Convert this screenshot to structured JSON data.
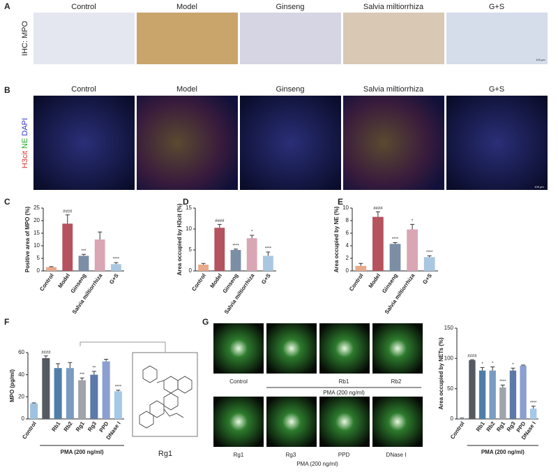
{
  "panel_labels": [
    "A",
    "B",
    "C",
    "D",
    "E",
    "F",
    "G"
  ],
  "row_a": {
    "ylabel": "IHC: MPO",
    "columns": [
      "Control",
      "Model",
      "Ginseng",
      "Salvia miltiorrhiza",
      "G+S"
    ],
    "scale": "100 μm"
  },
  "row_b": {
    "ylabel_parts": [
      "H3cit",
      "NE",
      "DAPI"
    ],
    "columns": [
      "Control",
      "Model",
      "Ginseng",
      "Salvia miltiorrhiza",
      "G+S"
    ],
    "scale": "100 μm"
  },
  "structure": {
    "label": "Rg1"
  },
  "panel_g_images": {
    "top": [
      "Control",
      "Rb1",
      "Rb2"
    ],
    "top_group": "PMA (200 ng/ml)",
    "bottom": [
      "Rg1",
      "Rg3",
      "PPD",
      "DNase I"
    ],
    "bottom_group": "PMA (200 ng/ml)"
  },
  "chart_data": [
    {
      "type": "bar",
      "ylabel": "Positive area of MPO (%)",
      "categories": [
        "Control",
        "Model",
        "Ginseng",
        "Salvia miltiorrhiza",
        "G+S"
      ],
      "values": [
        1.5,
        18.8,
        6,
        12.5,
        2.7
      ],
      "errors": [
        0.2,
        3.5,
        0.6,
        3,
        0.6
      ],
      "annotations": [
        null,
        "####",
        "***",
        null,
        "****"
      ],
      "colors": [
        "#e9a98a",
        "#b5535e",
        "#7b8ea6",
        "#d9a6b4",
        "#a9c7e0"
      ],
      "ylim": [
        0,
        25
      ],
      "yticks": [
        0,
        5,
        10,
        15,
        20,
        25
      ]
    },
    {
      "type": "bar",
      "ylabel": "Area occupied by H3cit (%)",
      "categories": [
        "Control",
        "Model",
        "Ginseng",
        "Salvia miltiorrhiza",
        "G+S"
      ],
      "values": [
        1.5,
        10.3,
        5,
        7.8,
        3.6
      ],
      "errors": [
        0.3,
        0.8,
        0.2,
        0.7,
        0.9
      ],
      "annotations": [
        null,
        "####",
        "****",
        "*",
        "****"
      ],
      "colors": [
        "#e9a98a",
        "#b5535e",
        "#7b8ea6",
        "#d9a6b4",
        "#a9c7e0"
      ],
      "ylim": [
        0,
        15
      ],
      "yticks": [
        0,
        5,
        10,
        15
      ]
    },
    {
      "type": "bar",
      "ylabel": "Area occupied by NE (%)",
      "categories": [
        "Control",
        "Model",
        "Ginseng",
        "Salvia miltiorrhiza",
        "G+S"
      ],
      "values": [
        0.8,
        8.6,
        4.3,
        6.6,
        2.2
      ],
      "errors": [
        0.4,
        0.8,
        0.2,
        0.8,
        0.2
      ],
      "annotations": [
        null,
        "####",
        "****",
        "*",
        "****"
      ],
      "colors": [
        "#e9a98a",
        "#b5535e",
        "#7b8ea6",
        "#d9a6b4",
        "#a9c7e0"
      ],
      "ylim": [
        0,
        10
      ],
      "yticks": [
        0,
        2,
        4,
        6,
        8,
        10
      ]
    },
    {
      "type": "bar",
      "ylabel": "MPO (pg/ml)",
      "categories": [
        "Control",
        null,
        "Rb1",
        "Rb2",
        "Rg1",
        "Rg3",
        "PPD",
        "DNase I"
      ],
      "values": [
        14,
        55,
        46,
        46,
        35,
        40,
        52,
        25
      ],
      "errors": [
        0.5,
        2,
        4,
        5,
        2,
        3,
        2,
        1
      ],
      "annotations": [
        null,
        "####",
        null,
        null,
        "***",
        "**",
        null,
        "****"
      ],
      "colors": [
        "#9ec3e0",
        "#555a60",
        "#4f7fa8",
        "#7a9cc0",
        "#a0a4aa",
        "#5c7aa8",
        "#8b9fd0",
        "#a4c8e8"
      ],
      "group_label": "PMA (200 ng/ml)",
      "ylim": [
        0,
        60
      ],
      "yticks": [
        0,
        20,
        40,
        60
      ]
    },
    {
      "type": "bar",
      "ylabel": "Area occupied by NETs (%)",
      "categories": [
        "Control",
        null,
        "Rb1",
        "Rb2",
        "Rg1",
        "Rg3",
        "PPD",
        "DNase I"
      ],
      "values": [
        1,
        97,
        80,
        80,
        52,
        80,
        88,
        17
      ],
      "errors": [
        0.5,
        1,
        5,
        6,
        4,
        4,
        1,
        4
      ],
      "annotations": [
        null,
        "####",
        "*",
        "*",
        "****",
        "*",
        null,
        "****"
      ],
      "colors": [
        "#9ec3e0",
        "#555a60",
        "#4f7fa8",
        "#7a9cc0",
        "#a0a4aa",
        "#5c7aa8",
        "#8b9fd0",
        "#a4c8e8"
      ],
      "group_label": "PMA (200 ng/ml)",
      "ylim": [
        0,
        150
      ],
      "yticks": [
        0,
        50,
        100,
        150
      ]
    }
  ]
}
